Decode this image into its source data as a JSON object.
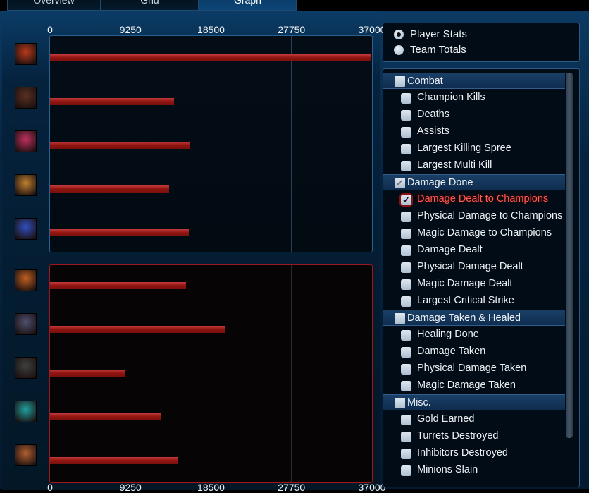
{
  "tabs": [
    {
      "label": "Overview",
      "active": false
    },
    {
      "label": "Grid",
      "active": false
    },
    {
      "label": "Graph",
      "active": true
    }
  ],
  "chart_data": {
    "type": "bar",
    "orientation": "horizontal",
    "xlim": [
      0,
      37000
    ],
    "ticks": [
      "0",
      "9250",
      "18500",
      "27750",
      "37000"
    ],
    "grid": true,
    "series": [
      {
        "team": "blue",
        "color": "#8e1410",
        "values": [
          36900,
          14250,
          16000,
          13700,
          15950
        ],
        "icons": [
          "#b83a1a",
          "#5a3020",
          "#c03060",
          "#c08030",
          "#3050c0"
        ]
      },
      {
        "team": "red",
        "color": "#8e1410",
        "values": [
          15600,
          20200,
          8700,
          12700,
          14700
        ],
        "icons": [
          "#c06020",
          "#505070",
          "#404040",
          "#20a0a0",
          "#b06030"
        ]
      }
    ]
  },
  "mode": {
    "options": [
      {
        "label": "Player Stats",
        "selected": true
      },
      {
        "label": "Team Totals",
        "selected": false
      }
    ]
  },
  "stats": [
    {
      "type": "header",
      "label": "Combat",
      "checked": false
    },
    {
      "type": "item",
      "label": "Champion Kills",
      "checked": false
    },
    {
      "type": "item",
      "label": "Deaths",
      "checked": false
    },
    {
      "type": "item",
      "label": "Assists",
      "checked": false
    },
    {
      "type": "item",
      "label": "Largest Killing Spree",
      "checked": false
    },
    {
      "type": "item",
      "label": "Largest Multi Kill",
      "checked": false
    },
    {
      "type": "header",
      "label": "Damage Done",
      "checked": true
    },
    {
      "type": "item",
      "label": "Damage Dealt to Champions",
      "checked": true,
      "selected": true
    },
    {
      "type": "item",
      "label": "Physical Damage to Champions",
      "checked": false
    },
    {
      "type": "item",
      "label": "Magic Damage to Champions",
      "checked": false
    },
    {
      "type": "item",
      "label": "Damage Dealt",
      "checked": false
    },
    {
      "type": "item",
      "label": "Physical Damage Dealt",
      "checked": false
    },
    {
      "type": "item",
      "label": "Magic Damage Dealt",
      "checked": false
    },
    {
      "type": "item",
      "label": "Largest Critical Strike",
      "checked": false
    },
    {
      "type": "header",
      "label": "Damage Taken & Healed",
      "checked": false
    },
    {
      "type": "item",
      "label": "Healing Done",
      "checked": false
    },
    {
      "type": "item",
      "label": "Damage Taken",
      "checked": false
    },
    {
      "type": "item",
      "label": "Physical Damage Taken",
      "checked": false
    },
    {
      "type": "item",
      "label": "Magic Damage Taken",
      "checked": false
    },
    {
      "type": "header",
      "label": "Misc.",
      "checked": false
    },
    {
      "type": "item",
      "label": "Gold Earned",
      "checked": false
    },
    {
      "type": "item",
      "label": "Turrets Destroyed",
      "checked": false
    },
    {
      "type": "item",
      "label": "Inhibitors Destroyed",
      "checked": false
    },
    {
      "type": "item",
      "label": "Minions Slain",
      "checked": false
    }
  ],
  "check_glyph": "✓"
}
